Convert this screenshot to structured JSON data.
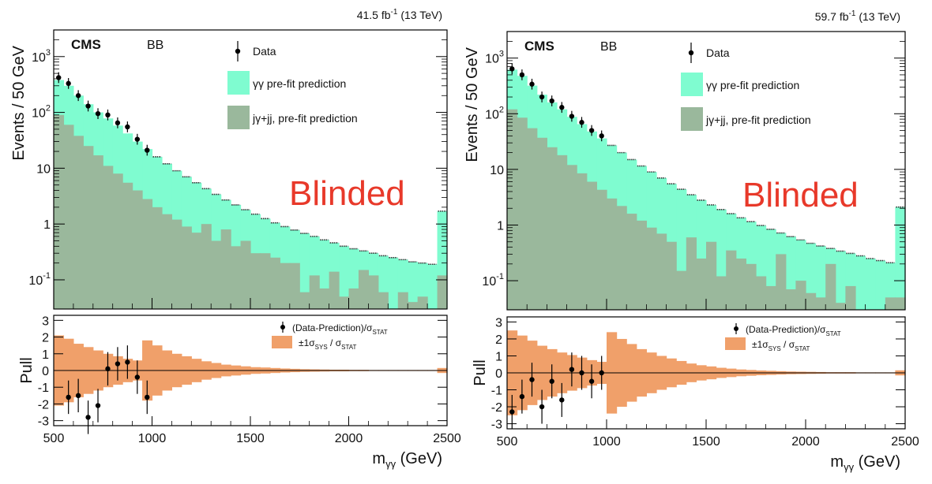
{
  "colors": {
    "gg_fill": "#7ffcd0",
    "jg_fill": "#9ab89c",
    "sys_band": "#f0a06a",
    "data_marker": "#000000",
    "blinded_text": "#e8392a",
    "frame": "#000000"
  },
  "xaxis": {
    "label_base": "m",
    "label_sub": "γγ",
    "label_unit": " (GeV)",
    "ticks": [
      "500",
      "1000",
      "1500",
      "2000",
      "2500"
    ]
  },
  "chart_data": [
    {
      "type": "bar",
      "lumi": "41.5 fb",
      "lumi_sup": "-1",
      "lumi_energy": " (13 TeV)",
      "experiment": "CMS",
      "category": "BB",
      "blinded_label": "Blinded",
      "ylabel": "Events / 50 GeV",
      "pull_ylabel": "Pull",
      "log_y": true,
      "ylim": [
        0.03,
        3000
      ],
      "xlim": [
        500,
        2500
      ],
      "legend": {
        "data": "Data",
        "gg": "γγ pre-fit prediction",
        "jg": "jγ+jj, pre-fit prediction"
      },
      "pull_legend": {
        "data": "(Data-Prediction)/σ",
        "data_sub": "STAT",
        "band_pre": "±1σ",
        "band_sub1": "SYS",
        "band_mid": " / σ",
        "band_sub2": "STAT"
      },
      "bin_edges_start": 500,
      "bin_width": 50,
      "series": [
        {
          "name": "γγ pre-fit prediction",
          "values": [
            380,
            300,
            200,
            140,
            100,
            78,
            58,
            42,
            30,
            22,
            16,
            12,
            9,
            7,
            5.5,
            4.3,
            3.4,
            2.7,
            2.2,
            1.8,
            1.5,
            1.25,
            1.05,
            0.9,
            0.78,
            0.68,
            0.6,
            0.52,
            0.46,
            0.4,
            0.36,
            0.33,
            0.3,
            0.27,
            0.25,
            0.23,
            0.21,
            0.2,
            0.19,
            1.7
          ]
        },
        {
          "name": "jγ+jj, pre-fit prediction",
          "values": [
            90,
            60,
            38,
            25,
            17,
            11,
            8,
            5.5,
            4,
            2.8,
            2,
            1.5,
            1.2,
            0.9,
            0.7,
            1.0,
            0.5,
            0.8,
            0.4,
            0.5,
            0.3,
            0.3,
            0.25,
            0.2,
            0.2,
            0.06,
            0.12,
            0.07,
            0.14,
            0.05,
            0.07,
            0.15,
            0.12,
            0.06,
            0.03,
            0.06,
            0.04,
            0.05,
            0.03,
            0.12
          ]
        },
        {
          "name": "Data",
          "x": [
            525,
            575,
            625,
            675,
            725,
            775,
            825,
            875,
            925,
            975
          ],
          "values": [
            420,
            330,
            200,
            130,
            95,
            90,
            65,
            55,
            33,
            21
          ]
        }
      ],
      "pull": {
        "x": [
          575,
          625,
          675,
          725,
          775,
          825,
          875,
          925,
          975
        ],
        "values": [
          -1.6,
          -1.5,
          -2.8,
          -2.1,
          0.1,
          0.4,
          0.5,
          -0.4,
          -1.6
        ],
        "band": [
          2.1,
          1.9,
          1.6,
          1.4,
          1.2,
          1.0,
          0.85,
          0.7,
          0.6,
          1.8,
          1.5,
          1.2,
          1.0,
          0.85,
          0.7,
          0.55,
          0.45,
          0.35,
          0.3,
          0.25,
          0.2,
          0.18,
          0.15,
          0.12,
          0.1,
          0.08,
          0.07,
          0.06,
          0.05,
          0.05,
          0.04,
          0.04,
          0.03,
          0.03,
          0.03,
          0.03,
          0.03,
          0.03,
          0.03,
          0.15
        ],
        "ylim": [
          -3.3,
          3.3
        ],
        "yticks": [
          -3,
          -2,
          -1,
          0,
          1,
          2,
          3
        ]
      }
    },
    {
      "type": "bar",
      "lumi": "59.7 fb",
      "lumi_sup": "-1",
      "lumi_energy": " (13 TeV)",
      "experiment": "CMS",
      "category": "BB",
      "blinded_label": "Blinded",
      "ylabel": "Events / 50 GeV",
      "pull_ylabel": "Pull",
      "log_y": true,
      "ylim": [
        0.03,
        3000
      ],
      "xlim": [
        500,
        2500
      ],
      "legend": {
        "data": "Data",
        "gg": "γγ pre-fit prediction",
        "jg": "jγ+jj, pre-fit prediction"
      },
      "pull_legend": {
        "data": "(Data-Prediction)/σ",
        "data_sub": "STAT",
        "band_pre": "±1σ",
        "band_sub1": "SYS",
        "band_mid": " / σ",
        "band_sub2": "STAT"
      },
      "bin_edges_start": 500,
      "bin_width": 50,
      "series": [
        {
          "name": "γγ pre-fit prediction",
          "values": [
            620,
            480,
            320,
            220,
            160,
            120,
            88,
            65,
            48,
            36,
            27,
            20,
            15,
            11.5,
            9,
            7,
            5.5,
            4.4,
            3.5,
            2.8,
            2.3,
            1.9,
            1.6,
            1.35,
            1.15,
            0.98,
            0.84,
            0.72,
            0.62,
            0.54,
            0.47,
            0.42,
            0.38,
            0.34,
            0.31,
            0.28,
            0.25,
            0.23,
            0.21,
            2.1
          ]
        },
        {
          "name": "jγ+jj, pre-fit prediction",
          "values": [
            120,
            85,
            55,
            37,
            25,
            18,
            12,
            8.5,
            6,
            4.3,
            3,
            2.2,
            1.6,
            1.2,
            0.9,
            0.7,
            0.5,
            0.15,
            0.6,
            0.25,
            0.5,
            0.12,
            0.35,
            0.25,
            0.2,
            0.12,
            0.08,
            0.3,
            0.07,
            0.1,
            0.06,
            0.05,
            0.2,
            0.04,
            0.08,
            0.03,
            0.03,
            0.03,
            0.05,
            0.05
          ]
        },
        {
          "name": "Data",
          "x": [
            525,
            575,
            625,
            675,
            725,
            775,
            825,
            875,
            925,
            975
          ],
          "values": [
            640,
            500,
            340,
            200,
            170,
            130,
            90,
            70,
            50,
            40
          ]
        }
      ],
      "pull": {
        "x": [
          525,
          575,
          625,
          675,
          725,
          775,
          825,
          875,
          925,
          975
        ],
        "values": [
          -2.3,
          -1.4,
          -0.4,
          -2.0,
          -0.5,
          -1.6,
          0.2,
          0.0,
          -0.5,
          0.0
        ],
        "band": [
          2.5,
          2.2,
          1.9,
          1.6,
          1.4,
          1.2,
          1.05,
          0.9,
          0.75,
          0.65,
          2.4,
          2.0,
          1.7,
          1.4,
          1.2,
          1.0,
          0.85,
          0.7,
          0.55,
          0.45,
          0.38,
          0.3,
          0.25,
          0.2,
          0.17,
          0.14,
          0.12,
          0.1,
          0.08,
          0.07,
          0.06,
          0.05,
          0.04,
          0.04,
          0.04,
          0.03,
          0.03,
          0.03,
          0.03,
          0.15
        ],
        "ylim": [
          -3.3,
          3.3
        ],
        "yticks": [
          -3,
          -2,
          -1,
          0,
          1,
          2,
          3
        ]
      }
    }
  ]
}
